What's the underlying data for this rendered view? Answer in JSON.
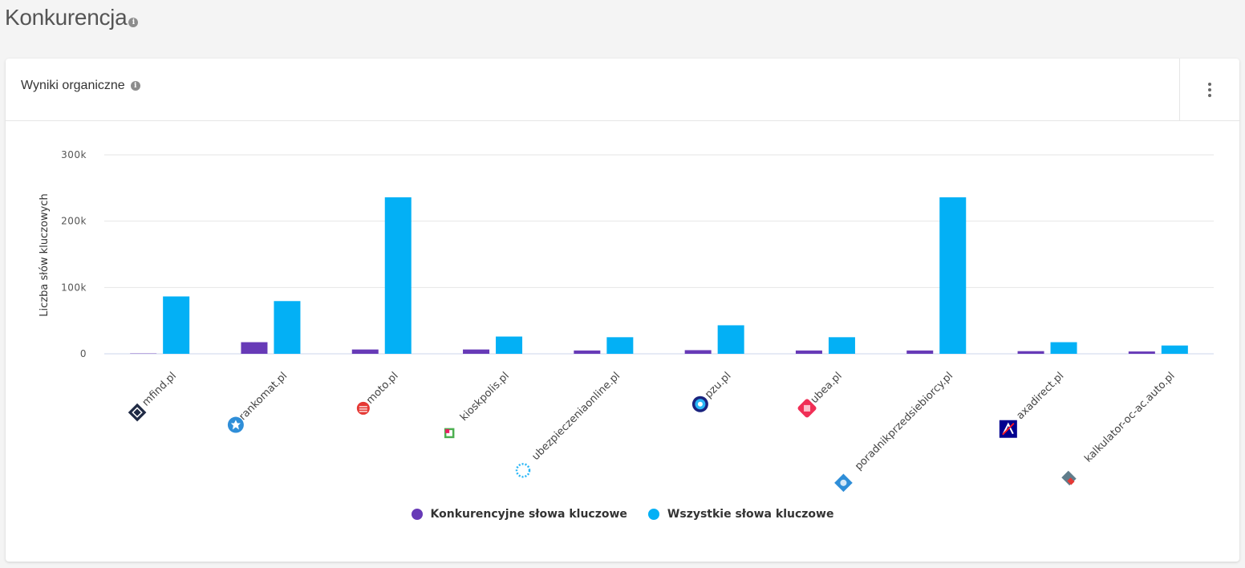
{
  "page": {
    "title": "Konkurencja",
    "info_icon": "i"
  },
  "card": {
    "title": "Wyniki organiczne",
    "info_icon": "i",
    "menu_icon": "kebab-menu-icon"
  },
  "chart_data": {
    "type": "bar",
    "categories": [
      "mfind.pl",
      "rankomat.pl",
      "moto.pl",
      "kioskpolis.pl",
      "ubezpieczeniaonline.pl",
      "pzu.pl",
      "ubea.pl",
      "poradnikprzedsiebiorcy.pl",
      "axadirect.pl",
      "kalkulator-oc-ac.auto.pl"
    ],
    "category_icons": [
      "mfind-logo-icon",
      "rankomat-logo-icon",
      "moto-logo-icon",
      "kioskpolis-logo-icon",
      "ubezpieczeniaonline-logo-icon",
      "pzu-logo-icon",
      "ubea-logo-icon",
      "poradnikprzedsiebiorcy-logo-icon",
      "axadirect-logo-icon",
      "kalkulator-logo-icon"
    ],
    "series": [
      {
        "name": "Konkurencyjne słowa kluczowe",
        "color": "#673ab7",
        "values": [
          500,
          17500,
          6500,
          6500,
          5000,
          5500,
          5000,
          5000,
          4000,
          3500
        ]
      },
      {
        "name": "Wszystkie słowa kluczowe",
        "color": "#03b0f5",
        "values": [
          86500,
          79500,
          236000,
          26000,
          25000,
          43000,
          25000,
          236000,
          17500,
          12500
        ]
      }
    ],
    "ylabel": "Liczba słów kluczowych",
    "xlabel": "",
    "ylim": [
      0,
      300000
    ],
    "yticks": [
      0,
      100000,
      200000,
      300000
    ],
    "ytick_labels": [
      "0",
      "100k",
      "200k",
      "300k"
    ],
    "grid": true,
    "legend_position": "bottom-center"
  }
}
